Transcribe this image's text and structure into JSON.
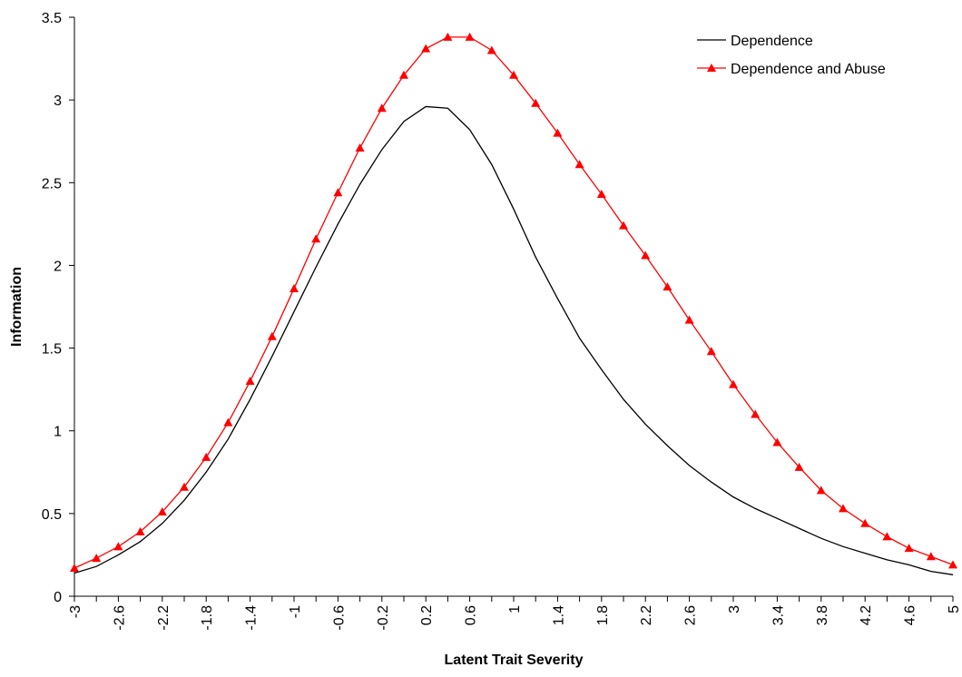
{
  "chart_data": {
    "type": "line",
    "title": "",
    "xlabel": "Latent Trait Severity",
    "ylabel": "Information",
    "xlim": [
      -3,
      5
    ],
    "ylim": [
      0,
      3.5
    ],
    "x_tick_labels": [
      "-3",
      "-2.6",
      "-2.2",
      "-1.8",
      "-1.4",
      "-1",
      "-0.6",
      "-0.2",
      "0.2",
      "0.6",
      "1",
      "1.4",
      "1.8",
      "2.2",
      "2.6",
      "3",
      "3.4",
      "3.8",
      "4.2",
      "4.6",
      "5"
    ],
    "y_tick_labels": [
      "0",
      "0.5",
      "1",
      "1.5",
      "2",
      "2.5",
      "3",
      "3.5"
    ],
    "grid": false,
    "legend_position": "top-right",
    "x": [
      -3,
      -2.8,
      -2.6,
      -2.4,
      -2.2,
      -2,
      -1.8,
      -1.6,
      -1.4,
      -1.2,
      -1,
      -0.8,
      -0.6,
      -0.4,
      -0.2,
      0,
      0.2,
      0.4,
      0.6,
      0.8,
      1,
      1.2,
      1.4,
      1.6,
      1.8,
      2,
      2.2,
      2.4,
      2.6,
      2.8,
      3,
      3.2,
      3.4,
      3.6,
      3.8,
      4,
      4.2,
      4.4,
      4.6,
      4.8,
      5
    ],
    "series": [
      {
        "name": "Dependence",
        "color": "#000000",
        "marker": "none",
        "values": [
          0.14,
          0.18,
          0.25,
          0.33,
          0.44,
          0.58,
          0.75,
          0.95,
          1.19,
          1.45,
          1.72,
          1.99,
          2.25,
          2.49,
          2.7,
          2.87,
          2.96,
          2.95,
          2.82,
          2.61,
          2.34,
          2.05,
          1.8,
          1.56,
          1.37,
          1.19,
          1.04,
          0.91,
          0.79,
          0.69,
          0.6,
          0.53,
          0.47,
          0.41,
          0.35,
          0.3,
          0.26,
          0.22,
          0.19,
          0.15,
          0.13
        ]
      },
      {
        "name": "Dependence and Abuse",
        "color": "#ff0000",
        "marker": "triangle",
        "values": [
          0.17,
          0.23,
          0.3,
          0.39,
          0.51,
          0.66,
          0.84,
          1.05,
          1.3,
          1.57,
          1.86,
          2.16,
          2.44,
          2.71,
          2.95,
          3.15,
          3.31,
          3.38,
          3.38,
          3.3,
          3.15,
          2.98,
          2.8,
          2.61,
          2.43,
          2.24,
          2.06,
          1.87,
          1.67,
          1.48,
          1.28,
          1.1,
          0.93,
          0.78,
          0.64,
          0.53,
          0.44,
          0.36,
          0.29,
          0.24,
          0.19
        ]
      }
    ]
  }
}
